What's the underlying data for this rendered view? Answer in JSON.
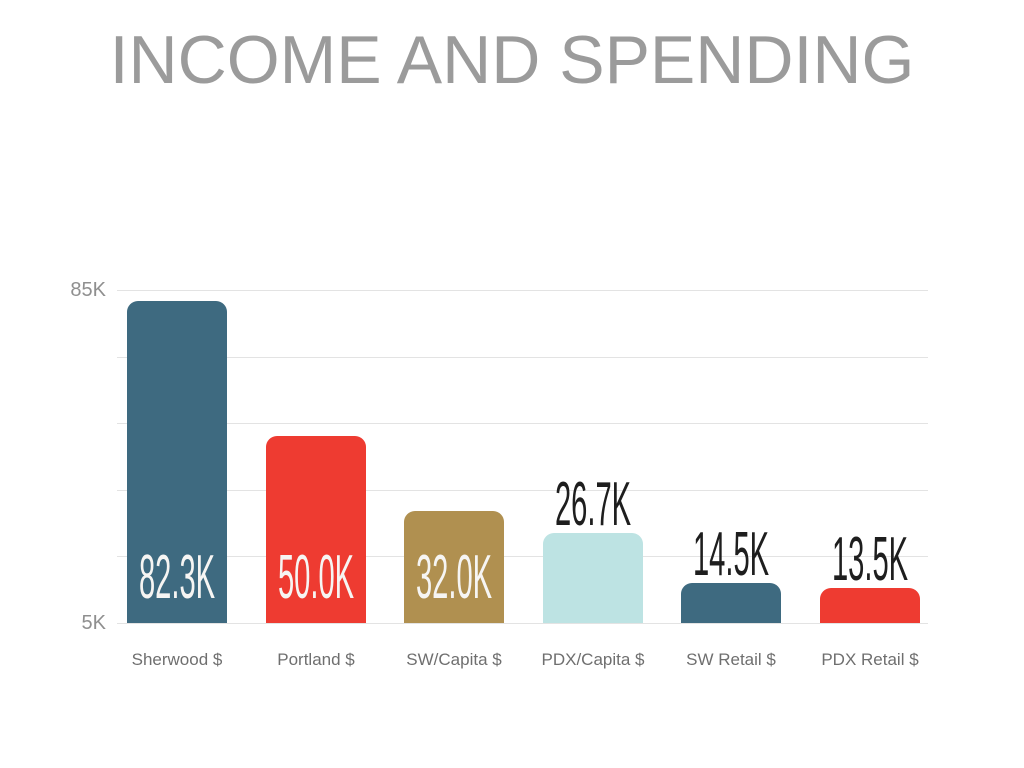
{
  "title": {
    "text": "INCOME AND SPENDING",
    "color": "#9b9b9b"
  },
  "chart_data": {
    "type": "bar",
    "title": "INCOME AND SPENDING",
    "categories": [
      "Sherwood $",
      "Portland $",
      "SW/Capita $",
      "PDX/Capita $",
      "SW Retail $",
      "PDX Retail $"
    ],
    "values": [
      82.3,
      50.0,
      32.0,
      26.7,
      14.5,
      13.5
    ],
    "value_unit": "K",
    "value_labels": [
      "82.3K",
      "50.0K",
      "32.0K",
      "26.7K",
      "14.5K",
      "13.5K"
    ],
    "bar_colors": [
      "#3e6a80",
      "#ee3b31",
      "#b09050",
      "#bde3e3",
      "#3e6a80",
      "#ee3b31"
    ],
    "value_label_positions": [
      "inside",
      "inside",
      "inside",
      "above",
      "above",
      "above"
    ],
    "value_label_color_inside": "#f6f5f3",
    "value_label_color_above": "#1e1e1e",
    "xlabel": "",
    "ylabel": "",
    "y_axis": {
      "ticks": [
        "85K",
        "5K"
      ],
      "min": 5,
      "max": 85,
      "gridline_step": 16,
      "gridline_count": 6,
      "gridline_color": "#e3e3e3"
    },
    "grid": true,
    "legend": false,
    "background": "#ffffff"
  }
}
